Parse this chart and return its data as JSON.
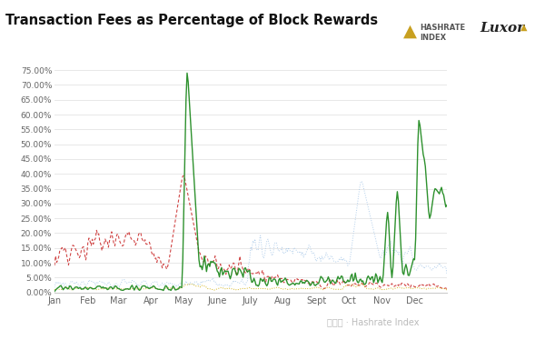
{
  "title": "Transaction Fees as Percentage of Block Rewards",
  "title_fontsize": 11,
  "background_color": "#ffffff",
  "plot_bg_color": "#ffffff",
  "grid_color": "#e8e8e8",
  "ylim": [
    0.0,
    0.78
  ],
  "months": [
    "Jan",
    "Feb",
    "Mar",
    "Apr",
    "May",
    "June",
    "July",
    "Aug",
    "Sept",
    "Oct",
    "Nov",
    "Dec"
  ],
  "month_days": [
    0,
    31,
    59,
    90,
    120,
    151,
    181,
    212,
    243,
    273,
    304,
    334
  ],
  "colors": {
    "2020": "#a8c8e8",
    "2021": "#cc3333",
    "2022": "#ccaa00",
    "2023": "#228B22"
  },
  "hashrate_color": "#c8a020",
  "luxor_color": "#222222"
}
